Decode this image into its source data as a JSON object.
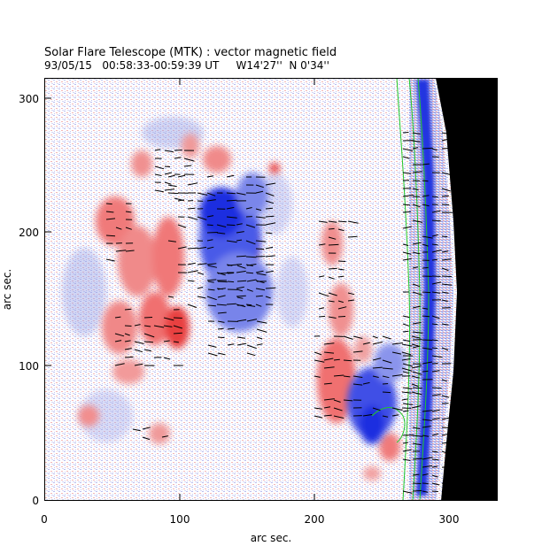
{
  "header": {
    "title": "Solar Flare Telescope (MTK) : vector magnetic field",
    "subtitle": "93/05/15   00:58:33-00:59:39 UT     W14'27''  N 0'34''"
  },
  "axes": {
    "xlabel": "arc sec.",
    "ylabel": "arc sec.",
    "xlim": [
      0,
      340
    ],
    "ylim": [
      0,
      315
    ],
    "xticks": [
      "0",
      "100",
      "200",
      "300"
    ],
    "yticks": [
      "0",
      "100",
      "200",
      "300"
    ]
  },
  "colors": {
    "positive_field": "#e8383a",
    "negative_field": "#1a2ee0",
    "background_noise_pos": "#f3b0b0",
    "background_noise_neg": "#aab0ee",
    "limb_contour": "#22c82a",
    "off_disk": "#000000",
    "vector_arrows": "#000000"
  },
  "icons": {
    "magnetogram": "magnetogram-image"
  }
}
